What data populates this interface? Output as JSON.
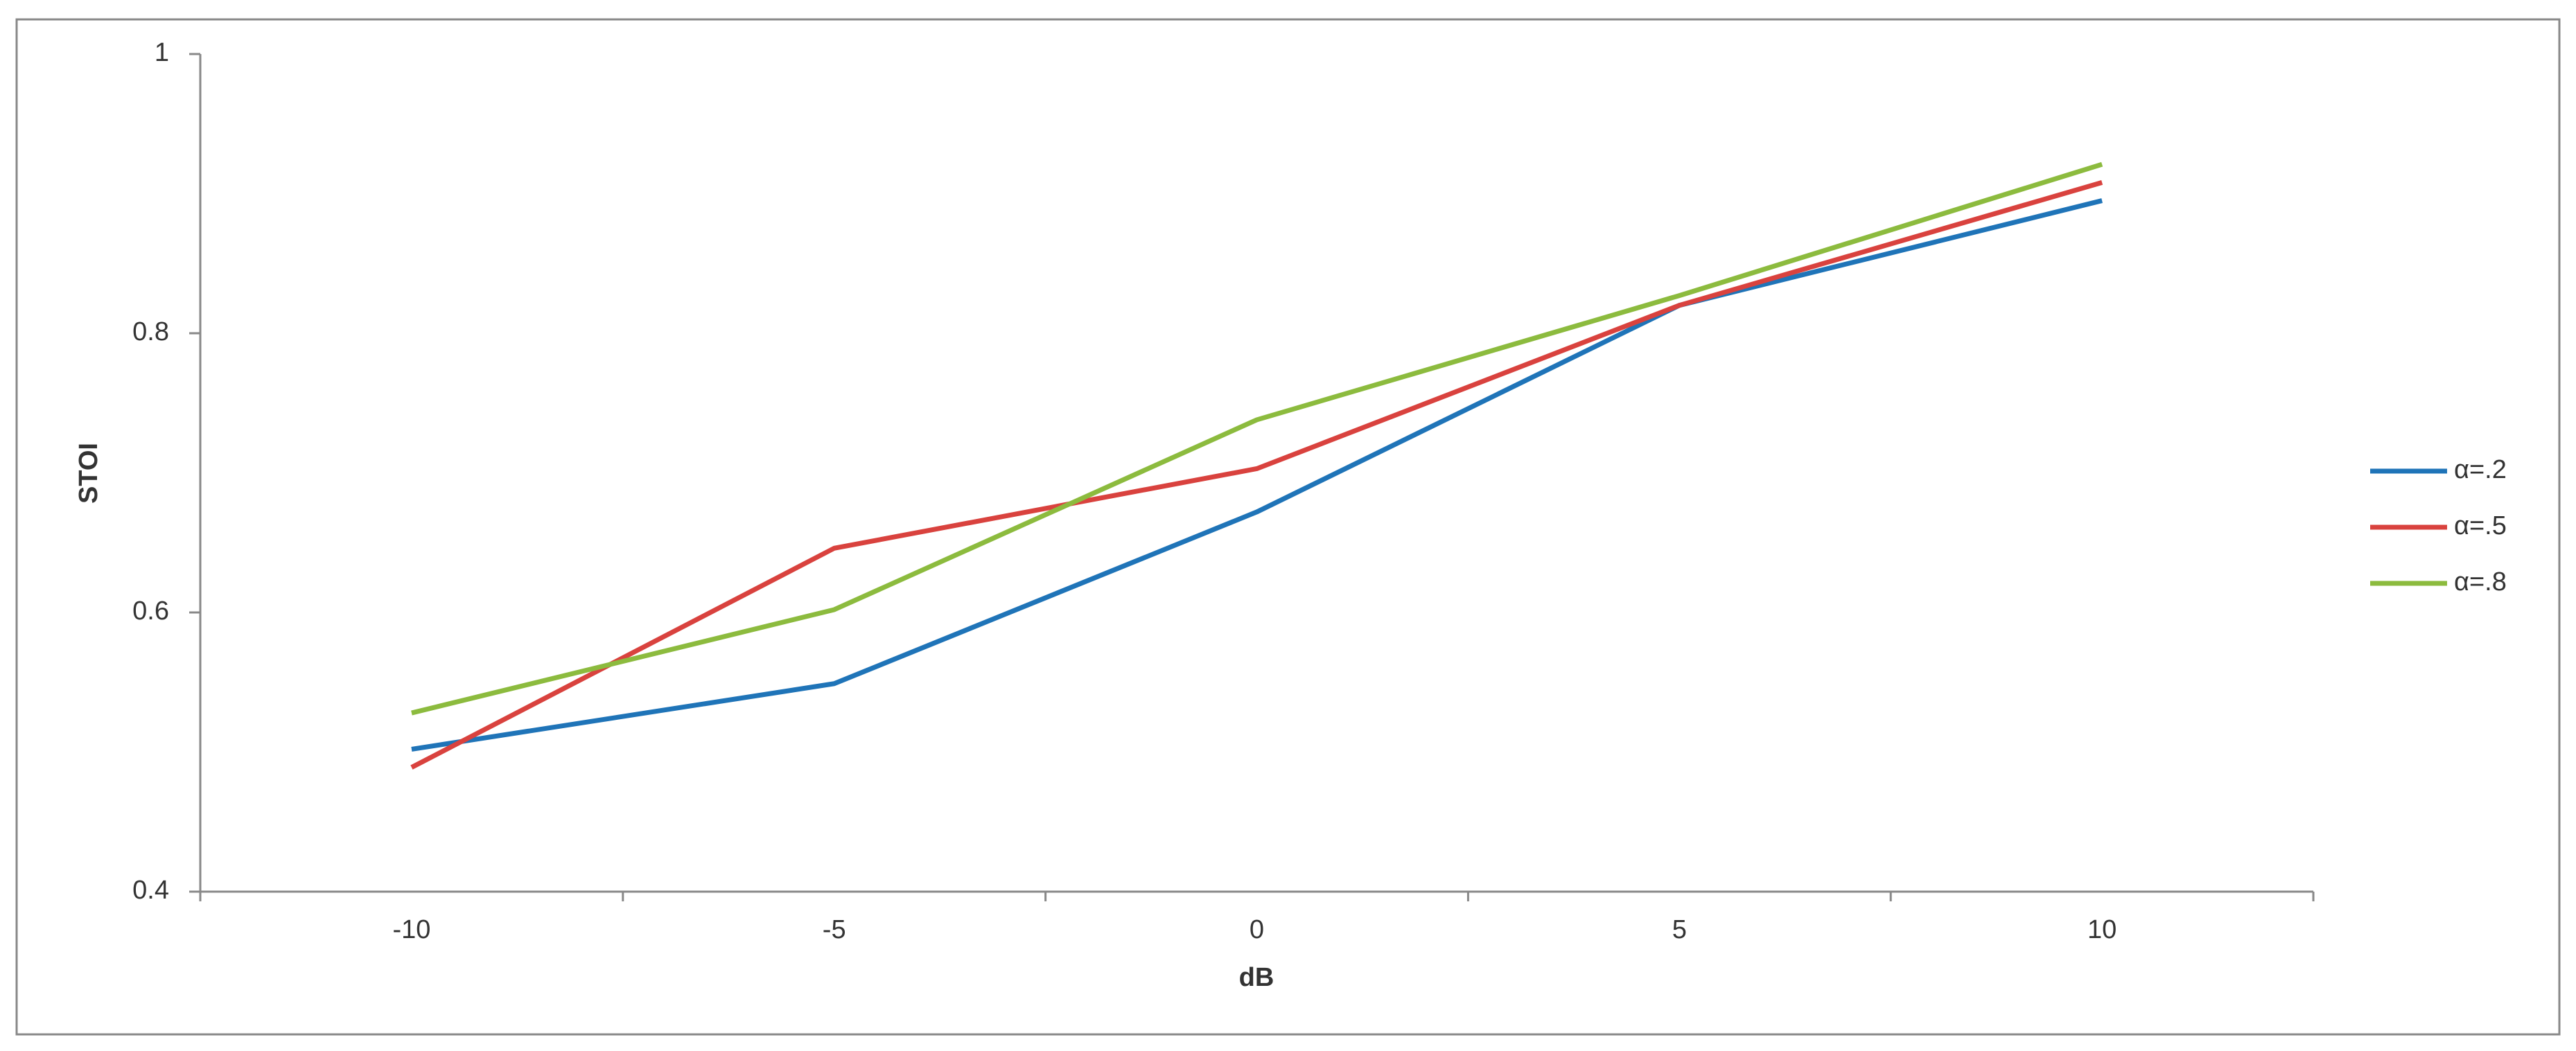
{
  "chart_data": {
    "type": "line",
    "x_label": "dB",
    "y_label": "STOI",
    "categories": [
      "-10",
      "-5",
      "0",
      "5",
      "10"
    ],
    "series": [
      {
        "name": "α=.2",
        "color": "#1f74b8",
        "values": [
          0.502,
          0.549,
          0.672,
          0.82,
          0.895
        ]
      },
      {
        "name": "α=.5",
        "color": "#d9423e",
        "values": [
          0.489,
          0.646,
          0.703,
          0.82,
          0.908
        ]
      },
      {
        "name": "α=.8",
        "color": "#8cbb3e",
        "values": [
          0.528,
          0.602,
          0.738,
          0.827,
          0.921
        ]
      }
    ],
    "ylim": [
      0.4,
      1
    ],
    "yticks": [
      0.4,
      0.6,
      0.8,
      1
    ],
    "grid": false,
    "legend": "right"
  }
}
